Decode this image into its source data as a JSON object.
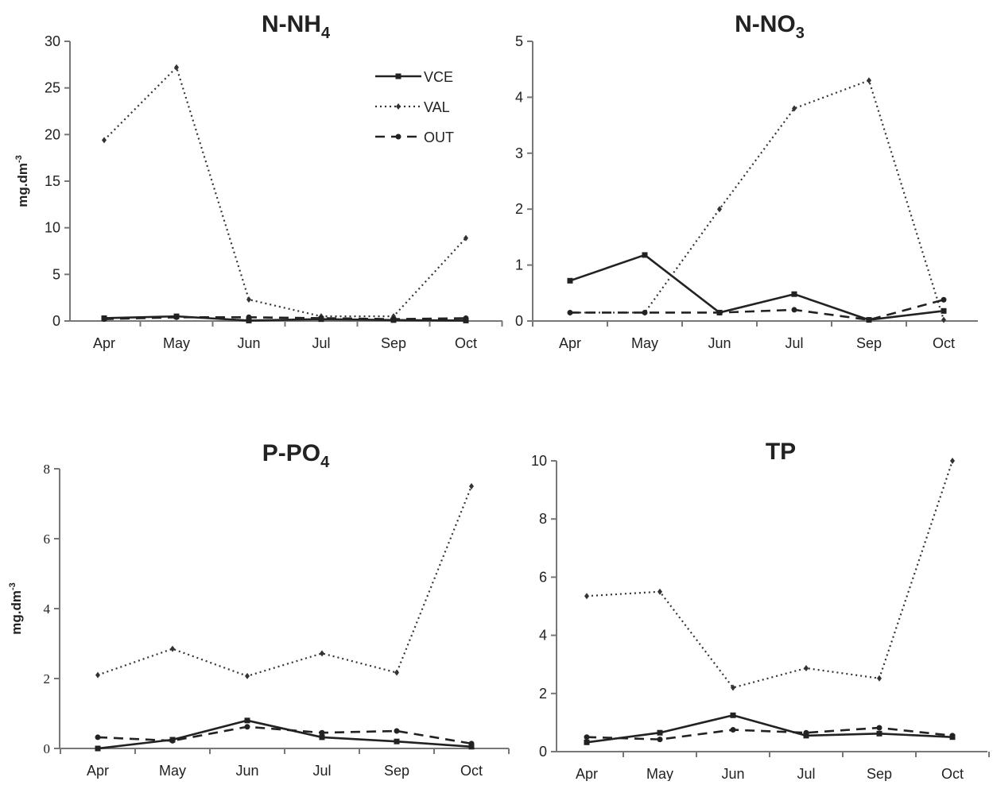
{
  "chart_data": [
    {
      "type": "line",
      "title": "N-NH",
      "title_subscript": "4",
      "ylabel": "mg.dm",
      "ylabel_superscript": "-3",
      "categories": [
        "Apr",
        "May",
        "Jun",
        "Jul",
        "Sep",
        "Oct"
      ],
      "ylim": [
        0,
        30
      ],
      "yticks": [
        "0",
        "5",
        "10",
        "15",
        "20",
        "25",
        "30"
      ],
      "legend": "top-right",
      "series": [
        {
          "name": "VCE",
          "values": [
            0.3,
            0.5,
            0.05,
            0.2,
            0.1,
            0.05
          ]
        },
        {
          "name": "VAL",
          "values": [
            19.4,
            27.2,
            2.3,
            0.5,
            0.5,
            8.9
          ]
        },
        {
          "name": "OUT",
          "values": [
            0.2,
            0.4,
            0.4,
            0.3,
            0.2,
            0.3
          ]
        }
      ]
    },
    {
      "type": "line",
      "title": "N-NO",
      "title_subscript": "3",
      "ylabel": "",
      "ylabel_superscript": "",
      "categories": [
        "Apr",
        "May",
        "Jun",
        "Jul",
        "Sep",
        "Oct"
      ],
      "ylim": [
        0,
        5
      ],
      "yticks": [
        "0",
        "1",
        "2",
        "3",
        "4",
        "5"
      ],
      "series": [
        {
          "name": "VCE",
          "values": [
            0.72,
            1.18,
            0.15,
            0.48,
            0.02,
            0.18
          ]
        },
        {
          "name": "VAL",
          "values": [
            0.15,
            0.15,
            2.0,
            3.8,
            4.3,
            0.02
          ]
        },
        {
          "name": "OUT",
          "values": [
            0.15,
            0.15,
            0.15,
            0.2,
            0.02,
            0.38
          ]
        }
      ]
    },
    {
      "type": "line",
      "title": "P-PO",
      "title_subscript": "4",
      "ylabel": "mg.dm",
      "ylabel_superscript": "-3",
      "categories": [
        "Apr",
        "May",
        "Jun",
        "Jul",
        "Sep",
        "Oct"
      ],
      "ylim": [
        0,
        8
      ],
      "yticks": [
        "0",
        "2",
        "4",
        "6",
        "8"
      ],
      "series": [
        {
          "name": "VCE",
          "values": [
            0.0,
            0.25,
            0.8,
            0.32,
            0.2,
            0.05
          ]
        },
        {
          "name": "VAL",
          "values": [
            2.1,
            2.85,
            2.07,
            2.72,
            2.17,
            7.5
          ]
        },
        {
          "name": "OUT",
          "values": [
            0.32,
            0.22,
            0.62,
            0.45,
            0.5,
            0.14
          ]
        }
      ]
    },
    {
      "type": "line",
      "title": "TP",
      "title_subscript": "",
      "ylabel": "",
      "ylabel_superscript": "",
      "categories": [
        "Apr",
        "May",
        "Jun",
        "Jul",
        "Sep",
        "Oct"
      ],
      "ylim": [
        0,
        10
      ],
      "yticks": [
        "0",
        "2",
        "4",
        "6",
        "8",
        "10"
      ],
      "series": [
        {
          "name": "VCE",
          "values": [
            0.32,
            0.65,
            1.25,
            0.55,
            0.62,
            0.5
          ]
        },
        {
          "name": "VAL",
          "values": [
            5.35,
            5.5,
            2.2,
            2.87,
            2.52,
            10.0
          ]
        },
        {
          "name": "OUT",
          "values": [
            0.5,
            0.42,
            0.75,
            0.65,
            0.82,
            0.55
          ]
        }
      ]
    }
  ],
  "legend_labels": [
    "VCE",
    "VAL",
    "OUT"
  ]
}
